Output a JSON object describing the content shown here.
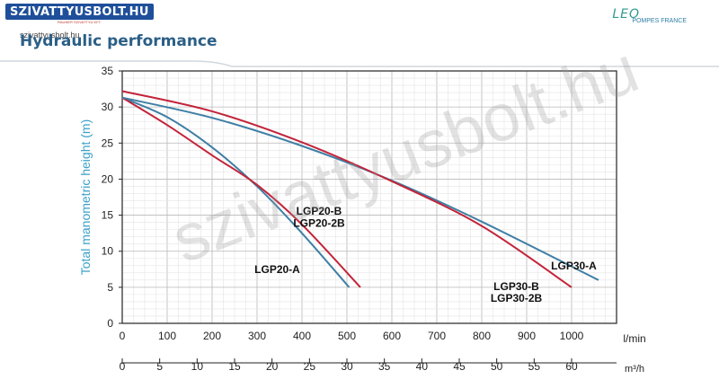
{
  "header": {
    "logo_text": "SZIVATTYUSBOLT.HU",
    "logo_sub": "RAUNER SZIVATTYÚ KFT.",
    "site_url": "szivattyusbolt.hu",
    "title": "Hydraulic performance",
    "brand_logo": "LEO",
    "brand_sub": "POMPES FRANCE"
  },
  "watermark": "szivattyusbolt.hu",
  "chart_data": {
    "type": "line",
    "title": "Hydraulic performance",
    "ylabel": "Total manometric height (m)",
    "x_unit_primary": "l/min",
    "x_unit_secondary": "m³/h",
    "xlim": [
      0,
      1100
    ],
    "ylim": [
      0,
      35
    ],
    "x_ticks": [
      0,
      100,
      200,
      300,
      400,
      500,
      600,
      700,
      800,
      900,
      1000
    ],
    "y_ticks": [
      0,
      5,
      10,
      15,
      20,
      25,
      30,
      35
    ],
    "x2_ticks": [
      0,
      5,
      10,
      15,
      20,
      25,
      30,
      35,
      40,
      45,
      50,
      55,
      60
    ],
    "grid": true,
    "colors": {
      "blue": "#3f7fa5",
      "red": "#c3243a",
      "axis_title": "#3aa0c8"
    },
    "series": [
      {
        "color": "#3f7fa5",
        "x": [
          0,
          100,
          200,
          300,
          400,
          505
        ],
        "y": [
          31.3,
          28.6,
          24.4,
          19.0,
          12.5,
          5.0
        ]
      },
      {
        "color": "#c3243a",
        "x": [
          0,
          100,
          200,
          300,
          400,
          530
        ],
        "y": [
          31.3,
          27.5,
          23.3,
          19.2,
          13.7,
          5.0
        ]
      },
      {
        "color": "#3f7fa5",
        "x": [
          0,
          200,
          400,
          600,
          800,
          1060
        ],
        "y": [
          31.3,
          28.5,
          24.6,
          19.8,
          14.1,
          6.0
        ]
      },
      {
        "color": "#c3243a",
        "x": [
          0,
          200,
          400,
          600,
          800,
          1000
        ],
        "y": [
          32.2,
          29.4,
          25.1,
          19.7,
          13.5,
          5.0
        ]
      }
    ],
    "annotations": [
      {
        "text": "LGP20-B",
        "x": 438,
        "y": 15.6
      },
      {
        "text": "LGP20-2B",
        "x": 438,
        "y": 13.9
      },
      {
        "text": "LGP20-A",
        "x": 345,
        "y": 7.5
      },
      {
        "text": "LGP30-A",
        "x": 1005,
        "y": 8.0
      },
      {
        "text": "LGP30-B",
        "x": 877,
        "y": 5.1
      },
      {
        "text": "LGP30-2B",
        "x": 877,
        "y": 3.5
      }
    ]
  }
}
